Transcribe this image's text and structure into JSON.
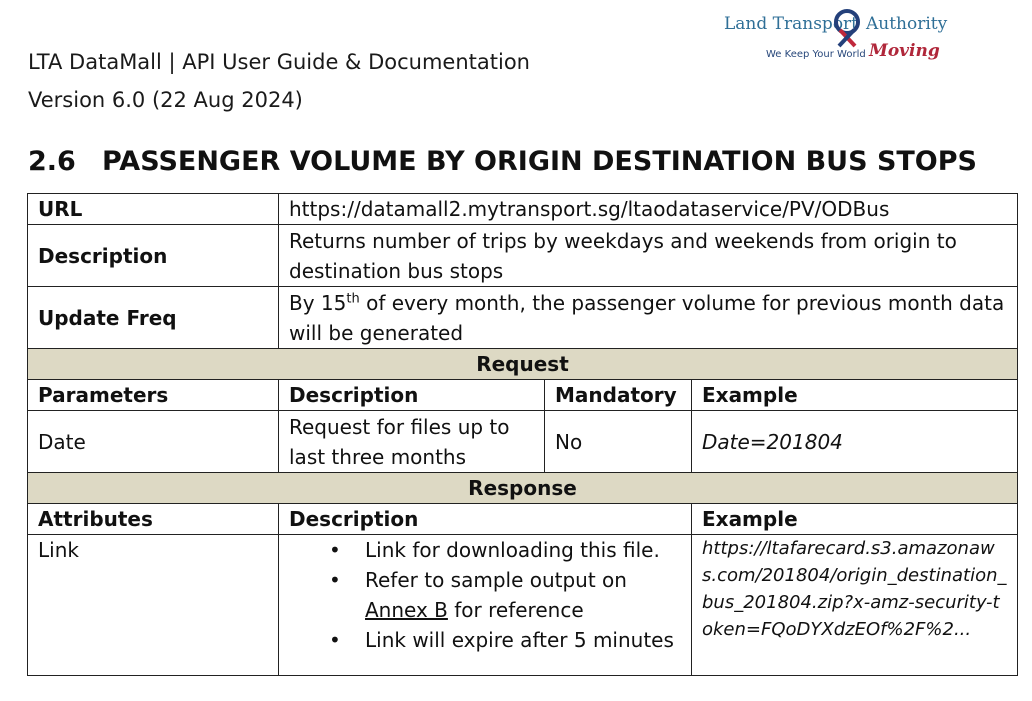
{
  "header": {
    "title": "LTA DataMall | API User Guide & Documentation",
    "version": "Version 6.0 (22 Aug 2024)"
  },
  "logo": {
    "name_left": "Land Transport",
    "name_right": "Authority",
    "tagline": "We Keep Your World",
    "tagline_word": "Moving"
  },
  "section": {
    "number": "2.6",
    "title": "PASSENGER VOLUME BY ORIGIN DESTINATION BUS STOPS"
  },
  "info": {
    "url_label": "URL",
    "url_value": "https://datamall2.mytransport.sg/ltaodataservice/PV/ODBus",
    "description_label": "Description",
    "description_value": "Returns number of trips by weekdays and weekends from origin to destination bus stops",
    "update_freq_label": "Update Freq",
    "update_freq_prefix": "By 15",
    "update_freq_sup": "th",
    "update_freq_suffix": " of every month, the passenger volume for previous month data will be generated"
  },
  "request": {
    "heading": "Request",
    "columns": [
      "Parameters",
      "Description",
      "Mandatory",
      "Example"
    ],
    "rows": [
      {
        "parameter": "Date",
        "description": "Request for files up to last three months",
        "mandatory": "No",
        "example": "Date=201804"
      }
    ]
  },
  "response": {
    "heading": "Response",
    "columns": [
      "Attributes",
      "Description",
      "Example"
    ],
    "rows": [
      {
        "attribute": "Link",
        "bullets": [
          "Link for downloading this file.",
          "Refer to sample output on ",
          "Link will expire after 5 minutes"
        ],
        "bullet_link": "Annex B",
        "bullet_link_suffix": " for reference",
        "example": "https://ltafarecard.s3.amazonaws.com/201804/origin_destination_bus_201804.zip?x-amz-security-token=FQoDYXdzEOf%2F%2..."
      }
    ]
  },
  "colors": {
    "band": "#ddd9c4",
    "logo_blue": "#2f6f97",
    "logo_red": "#b0273a"
  }
}
